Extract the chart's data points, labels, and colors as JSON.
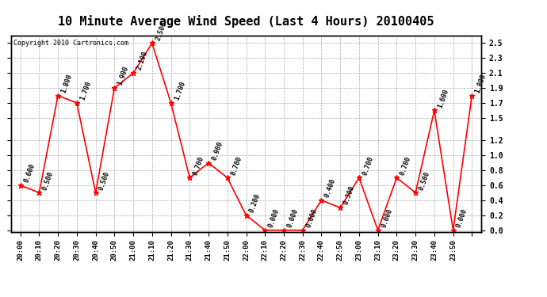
{
  "title": "10 Minute Average Wind Speed (Last 4 Hours) 20100405",
  "copyright": "Copyright 2010 Cartronics.com",
  "x_labels": [
    "20:00",
    "20:10",
    "20:20",
    "20:30",
    "20:40",
    "20:50",
    "21:00",
    "21:10",
    "21:20",
    "21:30",
    "21:40",
    "21:50",
    "22:00",
    "22:10",
    "22:20",
    "22:30",
    "22:40",
    "22:50",
    "23:00",
    "23:10",
    "23:20",
    "23:30",
    "23:40",
    "23:50"
  ],
  "y_values": [
    0.6,
    0.5,
    1.8,
    1.7,
    0.5,
    1.9,
    2.1,
    2.5,
    1.7,
    0.7,
    0.9,
    0.7,
    0.2,
    0.0,
    0.0,
    0.0,
    0.4,
    0.3,
    0.7,
    0.0,
    0.7,
    0.5,
    1.6,
    0.0,
    1.8
  ],
  "line_color": "#ff0000",
  "marker_color": "#ff0000",
  "grid_color": "#aaaaaa",
  "background_color": "#ffffff",
  "ylim_min": 0.0,
  "ylim_max": 2.5,
  "yticks_right": [
    0.0,
    0.2,
    0.4,
    0.6,
    0.8,
    1.0,
    1.2,
    1.5,
    1.7,
    1.9,
    2.1,
    2.3,
    2.5
  ],
  "title_fontsize": 11,
  "annotation_fontsize": 6,
  "copyright_fontsize": 6
}
